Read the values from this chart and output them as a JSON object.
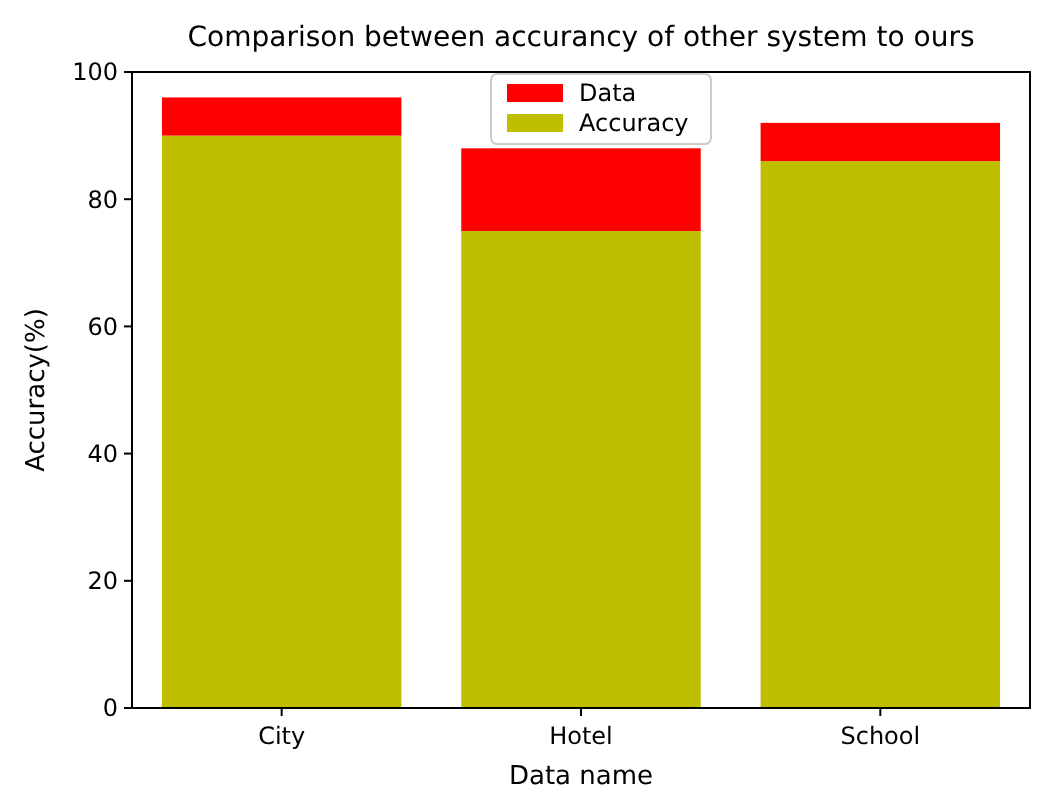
{
  "chart_data": {
    "type": "bar",
    "title": "Comparison between accurancy of other system to ours",
    "xlabel": "Data name",
    "ylabel": "Accuracy(%)",
    "categories": [
      "City",
      "Hotel",
      "School"
    ],
    "stacked": true,
    "series": [
      {
        "name": "Accuracy",
        "color": "#bfbf00",
        "values": [
          90,
          75,
          86
        ]
      },
      {
        "name": "Data",
        "color": "#ff0000",
        "values": [
          6,
          13,
          6
        ]
      }
    ],
    "ylim": [
      0,
      100
    ],
    "yticks": [
      0,
      20,
      40,
      60,
      80,
      100
    ],
    "legend": "top",
    "grid": false
  }
}
